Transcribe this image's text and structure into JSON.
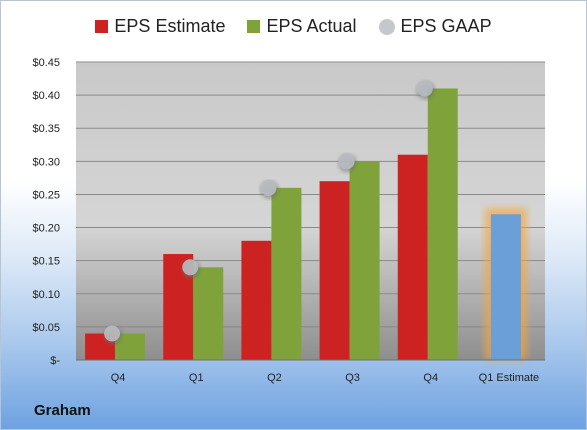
{
  "chart_data": {
    "type": "bar",
    "categories": [
      "Q4",
      "Q1",
      "Q2",
      "Q3",
      "Q4",
      "Q1 Estimate"
    ],
    "series": [
      {
        "name": "EPS Estimate",
        "values": [
          0.04,
          0.16,
          0.18,
          0.27,
          0.31,
          null
        ],
        "color": "#cc2222"
      },
      {
        "name": "EPS Actual",
        "values": [
          0.04,
          0.14,
          0.26,
          0.3,
          0.41,
          null
        ],
        "color": "#7fa33a"
      },
      {
        "name": "EPS GAAP",
        "values": [
          0.04,
          0.14,
          0.26,
          0.3,
          0.41,
          null
        ],
        "color": "#b8bcc2"
      }
    ],
    "forecast": {
      "category": "Q1 Estimate",
      "value": 0.22,
      "color": "#6a9fd8",
      "glow": "#f4a640"
    },
    "y_ticks": [
      "$-",
      "$0.05",
      "$0.10",
      "$0.15",
      "$0.20",
      "$0.25",
      "$0.30",
      "$0.35",
      "$0.40",
      "$0.45"
    ],
    "ylim": [
      0,
      0.45
    ],
    "grid": true,
    "legend_position": "top-center"
  },
  "brand": {
    "label": "Graham"
  }
}
